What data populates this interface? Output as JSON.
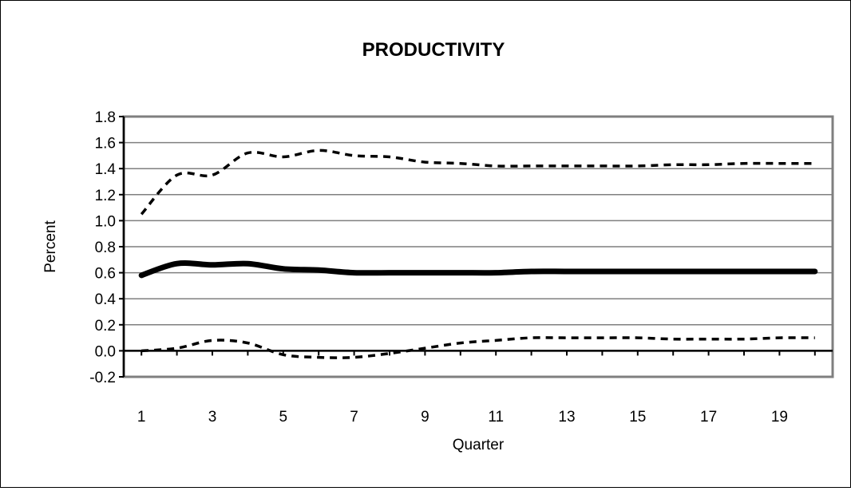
{
  "chart_data": {
    "type": "line",
    "title": "PRODUCTIVITY",
    "xlabel": "Quarter",
    "ylabel": "Percent",
    "x": [
      1,
      2,
      3,
      4,
      5,
      6,
      7,
      8,
      9,
      10,
      11,
      12,
      13,
      14,
      15,
      16,
      17,
      18,
      19,
      20
    ],
    "x_tick_labels": [
      "1",
      "3",
      "5",
      "7",
      "9",
      "11",
      "13",
      "15",
      "17",
      "19"
    ],
    "y_tick_labels": [
      "-0.2",
      "0.0",
      "0.2",
      "0.4",
      "0.6",
      "0.8",
      "1.0",
      "1.2",
      "1.4",
      "1.6",
      "1.8"
    ],
    "xlim": [
      0.5,
      20.5
    ],
    "ylim": [
      -0.2,
      1.8
    ],
    "grid": true,
    "series": [
      {
        "role": "upper-band",
        "style": "dashed",
        "color": "#000000",
        "values": [
          1.05,
          1.35,
          1.35,
          1.52,
          1.49,
          1.54,
          1.5,
          1.49,
          1.45,
          1.44,
          1.42,
          1.42,
          1.42,
          1.42,
          1.42,
          1.43,
          1.43,
          1.44,
          1.44,
          1.44
        ]
      },
      {
        "role": "estimate",
        "style": "solid",
        "color": "#000000",
        "values": [
          0.58,
          0.67,
          0.66,
          0.67,
          0.63,
          0.62,
          0.6,
          0.6,
          0.6,
          0.6,
          0.6,
          0.61,
          0.61,
          0.61,
          0.61,
          0.61,
          0.61,
          0.61,
          0.61,
          0.61
        ]
      },
      {
        "role": "lower-band",
        "style": "dashed",
        "color": "#000000",
        "values": [
          0.0,
          0.02,
          0.08,
          0.06,
          -0.03,
          -0.05,
          -0.05,
          -0.02,
          0.02,
          0.06,
          0.08,
          0.1,
          0.1,
          0.1,
          0.1,
          0.09,
          0.09,
          0.09,
          0.1,
          0.1
        ]
      }
    ],
    "colors": {
      "plot_border": "#7f7f7f",
      "grid": "#7f7f7f",
      "axis": "#000000"
    }
  }
}
